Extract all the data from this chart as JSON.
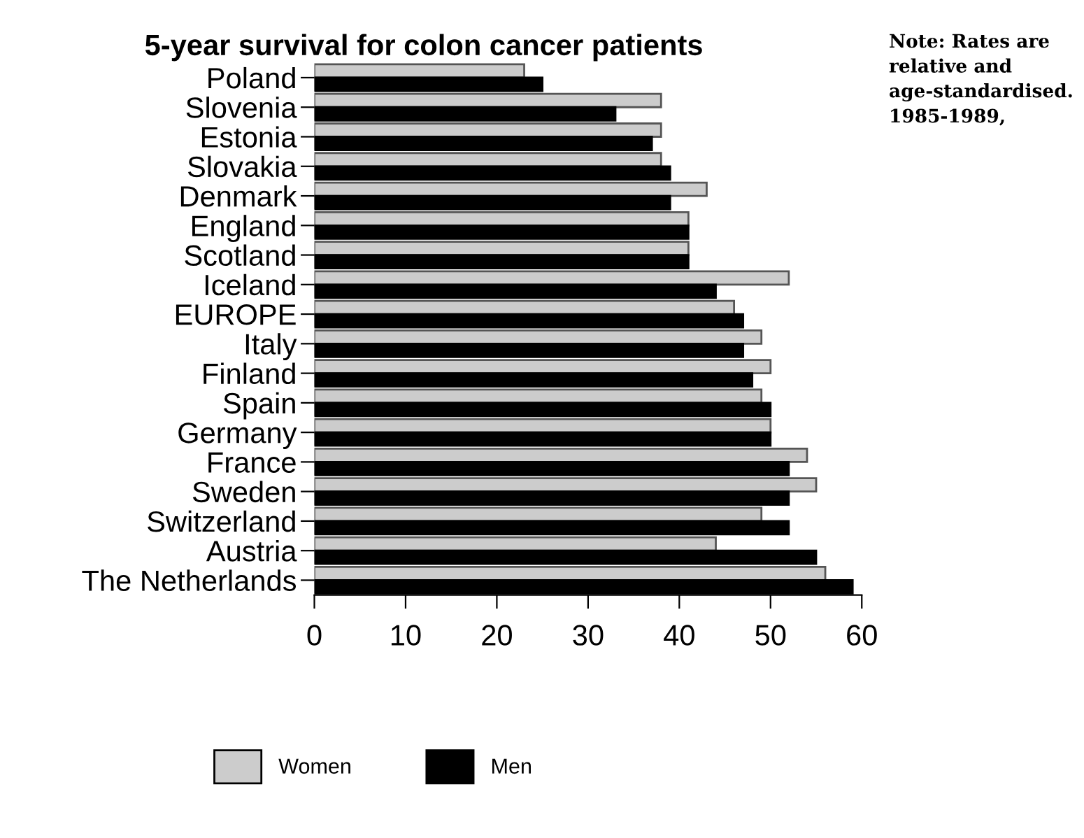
{
  "chart_data": {
    "type": "bar",
    "orientation": "horizontal",
    "title": "5-year survival for colon cancer patients",
    "categories": [
      "Poland",
      "Slovenia",
      "Estonia",
      "Slovakia",
      "Denmark",
      "England",
      "Scotland",
      "Iceland",
      "EUROPE",
      "Italy",
      "Finland",
      "Spain",
      "Germany",
      "France",
      "Sweden",
      "Switzerland",
      "Austria",
      "The Netherlands"
    ],
    "series": [
      {
        "name": "Women",
        "color": "#cccccc",
        "values": [
          23,
          38,
          38,
          38,
          43,
          41,
          41,
          52,
          46,
          49,
          50,
          49,
          50,
          54,
          55,
          49,
          44,
          56
        ]
      },
      {
        "name": "Men",
        "color": "#000000",
        "values": [
          25,
          33,
          37,
          39,
          39,
          41,
          41,
          44,
          47,
          47,
          48,
          50,
          50,
          52,
          52,
          52,
          55,
          59
        ]
      }
    ],
    "xlim": [
      0,
      60
    ],
    "xticks": [
      0,
      10,
      20,
      30,
      40,
      50,
      60
    ],
    "grid": false,
    "legend": "bottom",
    "annotations": [
      "Note: Rates are relative and age-standardised. 1985-1989,"
    ]
  }
}
